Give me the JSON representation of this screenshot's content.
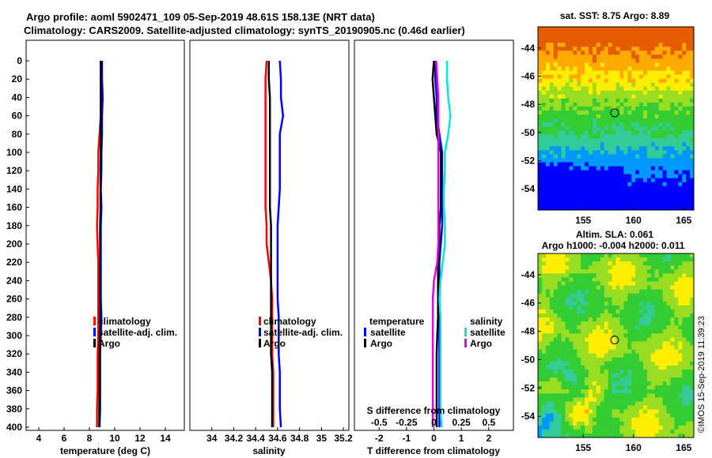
{
  "title": {
    "line1": "Argo profile: aoml 5902471_109 05-Sep-2019 48.61S 158.13E (NRT data)",
    "line2": "Climatology: CARS2009. Satellite-adjusted climatology: synTS_20190905.nc (0.46d earlier)"
  },
  "stamp": "©IMOS 15-Sep-2019 11:39:23",
  "colors": {
    "climatology": "#ff0000",
    "satellite": "#0000ff",
    "argo": "#000000",
    "salinity_satellite": "#00e6e6",
    "salinity_argo": "#e600e6"
  },
  "chart_data": [
    {
      "type": "line",
      "name": "temperature-profile",
      "xlabel": "temperature (deg C)",
      "xlim": [
        3,
        15.5
      ],
      "ylim": [
        0,
        400
      ],
      "y_inverted": true,
      "xticks": [
        4,
        6,
        8,
        10,
        12,
        14
      ],
      "yticks": [
        0,
        20,
        40,
        60,
        80,
        100,
        120,
        140,
        160,
        180,
        200,
        220,
        240,
        260,
        280,
        300,
        320,
        340,
        360,
        380,
        400
      ],
      "legend": [
        "climatology",
        "satellite-adj. clim.",
        "Argo"
      ],
      "series": [
        {
          "name": "climatology",
          "depth": [
            0,
            20,
            40,
            60,
            80,
            100,
            120,
            140,
            160,
            180,
            200,
            220,
            240,
            260,
            280,
            300,
            320,
            340,
            360,
            380,
            400
          ],
          "values": [
            8.9,
            8.9,
            8.9,
            8.9,
            8.8,
            8.7,
            8.7,
            8.65,
            8.65,
            8.6,
            8.65,
            8.7,
            8.7,
            8.7,
            8.7,
            8.7,
            8.65,
            8.65,
            8.65,
            8.6,
            8.6
          ]
        },
        {
          "name": "satellite-adj. clim.",
          "depth": [
            0,
            20,
            40,
            60,
            80,
            100,
            120,
            140,
            160,
            180,
            200,
            220,
            240,
            260,
            280,
            300,
            320,
            340,
            360,
            380,
            400
          ],
          "values": [
            9.0,
            9.0,
            9.05,
            9.0,
            9.0,
            8.95,
            8.95,
            8.9,
            8.95,
            8.9,
            8.9,
            8.9,
            8.9,
            8.9,
            8.95,
            8.9,
            8.85,
            8.85,
            8.85,
            8.85,
            8.8
          ]
        },
        {
          "name": "Argo",
          "depth": [
            0,
            20,
            40,
            60,
            80,
            100,
            120,
            140,
            160,
            180,
            200,
            220,
            240,
            260,
            280,
            300,
            320,
            340,
            360,
            380,
            400
          ],
          "values": [
            8.9,
            8.9,
            8.9,
            8.9,
            8.9,
            8.9,
            8.88,
            8.88,
            8.88,
            8.85,
            8.85,
            8.85,
            8.85,
            8.85,
            8.85,
            8.82,
            8.8,
            8.8,
            8.8,
            8.78,
            8.78
          ]
        }
      ]
    },
    {
      "type": "line",
      "name": "salinity-profile",
      "xlabel": "salinity",
      "xlim": [
        33.8,
        35.25
      ],
      "ylim": [
        0,
        400
      ],
      "y_inverted": true,
      "xticks": [
        34,
        34.2,
        34.4,
        34.6,
        34.8,
        35,
        35.2
      ],
      "legend": [
        "climatology",
        "satellite-adj. clim.",
        "Argo"
      ],
      "series": [
        {
          "name": "climatology",
          "depth": [
            0,
            20,
            40,
            60,
            80,
            100,
            120,
            140,
            160,
            180,
            200,
            220,
            240,
            260,
            280,
            300,
            320,
            340,
            360,
            380,
            400
          ],
          "values": [
            34.5,
            34.49,
            34.49,
            34.49,
            34.49,
            34.49,
            34.49,
            34.49,
            34.49,
            34.5,
            34.5,
            34.52,
            34.54,
            34.55,
            34.55,
            34.55,
            34.55,
            34.56,
            34.56,
            34.56,
            34.56
          ]
        },
        {
          "name": "satellite-adj. clim.",
          "depth": [
            0,
            20,
            40,
            60,
            80,
            100,
            120,
            140,
            160,
            180,
            200,
            220,
            240,
            260,
            280,
            300,
            320,
            340,
            360,
            380,
            400
          ],
          "values": [
            34.62,
            34.63,
            34.63,
            34.65,
            34.62,
            34.62,
            34.62,
            34.62,
            34.61,
            34.6,
            34.6,
            34.6,
            34.6,
            34.6,
            34.61,
            34.61,
            34.61,
            34.62,
            34.62,
            34.62,
            34.63
          ]
        },
        {
          "name": "Argo",
          "depth": [
            0,
            20,
            40,
            60,
            80,
            100,
            120,
            140,
            160,
            180,
            200,
            220,
            240,
            260,
            280,
            300,
            320,
            340,
            360,
            380,
            400
          ],
          "values": [
            34.52,
            34.52,
            34.53,
            34.53,
            34.53,
            34.53,
            34.53,
            34.53,
            34.53,
            34.54,
            34.54,
            34.54,
            34.54,
            34.54,
            34.54,
            34.54,
            34.54,
            34.55,
            34.55,
            34.55,
            34.55
          ]
        }
      ]
    },
    {
      "type": "line",
      "name": "difference-profile",
      "xlabel": "T difference from climatology",
      "xlabel_top": "S difference from climatology",
      "xlim": [
        -2.9,
        2.9
      ],
      "ylim": [
        0,
        400
      ],
      "y_inverted": true,
      "xticks": [
        -2,
        -1,
        0,
        1,
        2
      ],
      "xticks_top": [
        "-0.5",
        "-0.25",
        "0",
        "0.25",
        "0.5"
      ],
      "legend_temperature_title": "temperature",
      "legend_salinity_title": "salinity",
      "legend_items": [
        "satellite",
        "Argo"
      ],
      "series": [
        {
          "name": "temperature satellite",
          "depth": [
            0,
            20,
            40,
            60,
            80,
            100,
            120,
            140,
            160,
            180,
            200,
            220,
            240,
            260,
            280,
            300,
            320,
            340,
            360,
            380,
            400
          ],
          "values": [
            0.05,
            0.05,
            0.1,
            0.1,
            0.2,
            0.3,
            0.3,
            0.3,
            0.3,
            0.3,
            0.25,
            0.2,
            0.2,
            0.2,
            0.2,
            0.2,
            0.2,
            0.2,
            0.2,
            0.2,
            0.2
          ]
        },
        {
          "name": "temperature Argo",
          "depth": [
            0,
            20,
            40,
            60,
            80,
            100,
            120,
            140,
            160,
            180,
            200,
            220,
            240,
            260,
            280,
            300,
            320,
            340,
            360,
            380,
            400
          ],
          "values": [
            0.0,
            -0.05,
            0.0,
            0.05,
            0.1,
            0.25,
            0.25,
            0.25,
            0.25,
            0.2,
            0.2,
            0.15,
            0.15,
            0.15,
            0.15,
            0.12,
            0.1,
            0.1,
            0.1,
            0.1,
            0.1
          ]
        },
        {
          "name": "salinity satellite",
          "depth": [
            0,
            20,
            40,
            60,
            80,
            100,
            120,
            140,
            160,
            180,
            200,
            220,
            240,
            260,
            280,
            300,
            320,
            340,
            360,
            380,
            400
          ],
          "values": [
            0.12,
            0.12,
            0.13,
            0.15,
            0.13,
            0.1,
            0.1,
            0.09,
            0.09,
            0.1,
            0.1,
            0.08,
            0.06,
            0.05,
            0.06,
            0.06,
            0.06,
            0.06,
            0.06,
            0.06,
            0.07
          ]
        },
        {
          "name": "salinity Argo",
          "depth": [
            0,
            20,
            40,
            60,
            80,
            100,
            120,
            140,
            160,
            180,
            200,
            220,
            240,
            260,
            280,
            300,
            320,
            340,
            360,
            380,
            400
          ],
          "values": [
            0.02,
            0.03,
            0.04,
            0.04,
            0.04,
            0.04,
            0.04,
            0.04,
            0.04,
            0.04,
            0.04,
            0.03,
            0.0,
            -0.01,
            -0.01,
            -0.01,
            -0.01,
            -0.01,
            -0.01,
            -0.01,
            -0.01
          ]
        }
      ]
    },
    {
      "type": "heatmap",
      "name": "sst-map",
      "title": "sat. SST: 8.75 Argo: 8.89",
      "xlim": [
        150.5,
        166
      ],
      "ylim": [
        -55.5,
        -42.5
      ],
      "xticks": [
        155,
        160,
        165
      ],
      "yticks": [
        -44,
        -46,
        -48,
        -50,
        -52,
        -54
      ],
      "argo_position": {
        "lon": 158.13,
        "lat": -48.61
      }
    },
    {
      "type": "heatmap",
      "name": "sla-map",
      "title": "Altim. SLA: 0.061",
      "subtitle": "Argo h1000: -0.004 h2000: 0.011",
      "xlim": [
        150.5,
        166
      ],
      "ylim": [
        -55.5,
        -42.5
      ],
      "xticks": [
        155,
        160,
        165
      ],
      "yticks": [
        -44,
        -46,
        -48,
        -50,
        -52,
        -54
      ],
      "argo_position": {
        "lon": 158.13,
        "lat": -48.61
      }
    }
  ]
}
